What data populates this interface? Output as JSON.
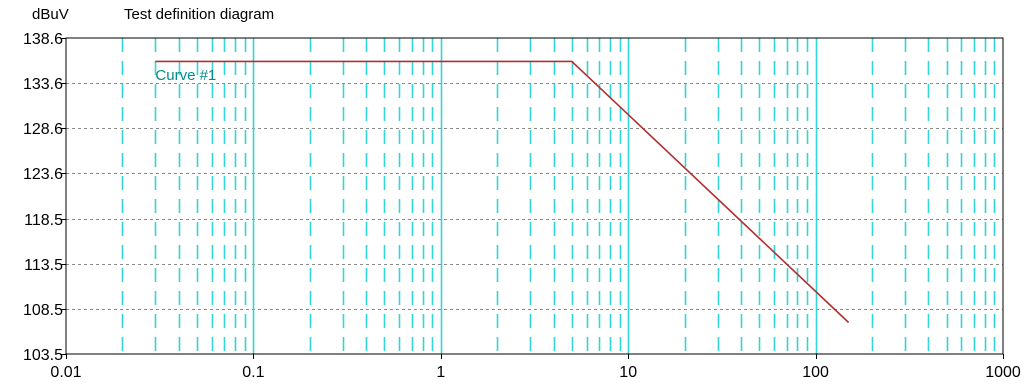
{
  "header": {
    "unit_label": "dBuV",
    "title": "Test definition diagram"
  },
  "colors": {
    "curve": "#b03030",
    "major_grid": "#33d6d6",
    "minor_grid": "#33d6d6",
    "horizontal_grid": "#8a8a8a",
    "frame": "#000000",
    "curve_label": "#008b8b"
  },
  "chart_data": {
    "type": "line",
    "title": "Test definition diagram",
    "ylabel": "dBuV",
    "xlabel": "",
    "x_scale": "log",
    "xlim": [
      0.01,
      1000
    ],
    "ylim": [
      103.5,
      138.6
    ],
    "x_ticks": [
      "0.01",
      "0.1",
      "1",
      "10",
      "100",
      "1000"
    ],
    "y_ticks": [
      "138.6",
      "133.6",
      "128.6",
      "123.6",
      "118.5",
      "113.5",
      "108.5",
      "103.5"
    ],
    "grid": true,
    "series": [
      {
        "name": "Curve #1",
        "x": [
          0.03,
          5,
          150
        ],
        "y": [
          136.0,
          136.0,
          107.0
        ]
      }
    ],
    "annotations": [
      {
        "text": "Curve #1",
        "x": 0.03,
        "y": 134.5
      }
    ]
  }
}
